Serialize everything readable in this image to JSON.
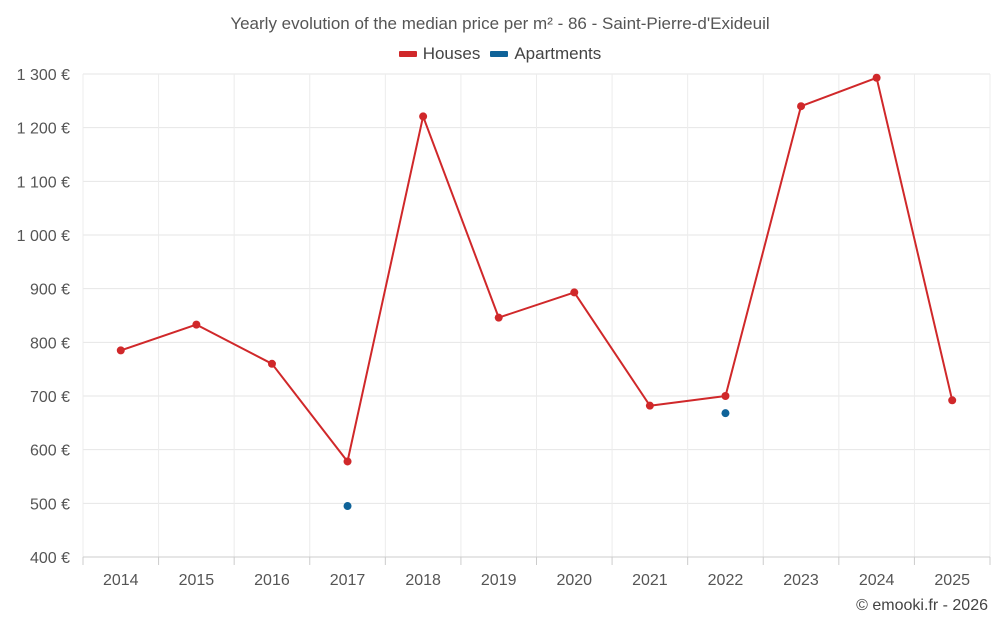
{
  "chart_data": {
    "type": "line",
    "title": "Yearly evolution of the median price per m² - 86 - Saint-Pierre-d'Exideuil",
    "categories": [
      "2014",
      "2015",
      "2016",
      "2017",
      "2018",
      "2019",
      "2020",
      "2021",
      "2022",
      "2023",
      "2024",
      "2025"
    ],
    "ylim": [
      400,
      1300
    ],
    "yticks": [
      400,
      500,
      600,
      700,
      800,
      900,
      1000,
      1100,
      1200,
      1300
    ],
    "ytick_labels": [
      "400 €",
      "500 €",
      "600 €",
      "700 €",
      "800 €",
      "900 €",
      "1 000 €",
      "1 100 €",
      "1 200 €",
      "1 300 €"
    ],
    "grid": true,
    "legend_position": "top-center",
    "series": [
      {
        "name": "Houses",
        "color": "#d0282a",
        "draw_line": true,
        "values": [
          785,
          833,
          760,
          578,
          1221,
          846,
          893,
          682,
          700,
          1240,
          1293,
          692
        ]
      },
      {
        "name": "Apartments",
        "color": "#0f6399",
        "draw_line": false,
        "values": [
          null,
          null,
          null,
          495,
          null,
          null,
          null,
          null,
          668,
          null,
          null,
          null
        ]
      }
    ]
  },
  "credits": "© emooki.fr - 2026"
}
